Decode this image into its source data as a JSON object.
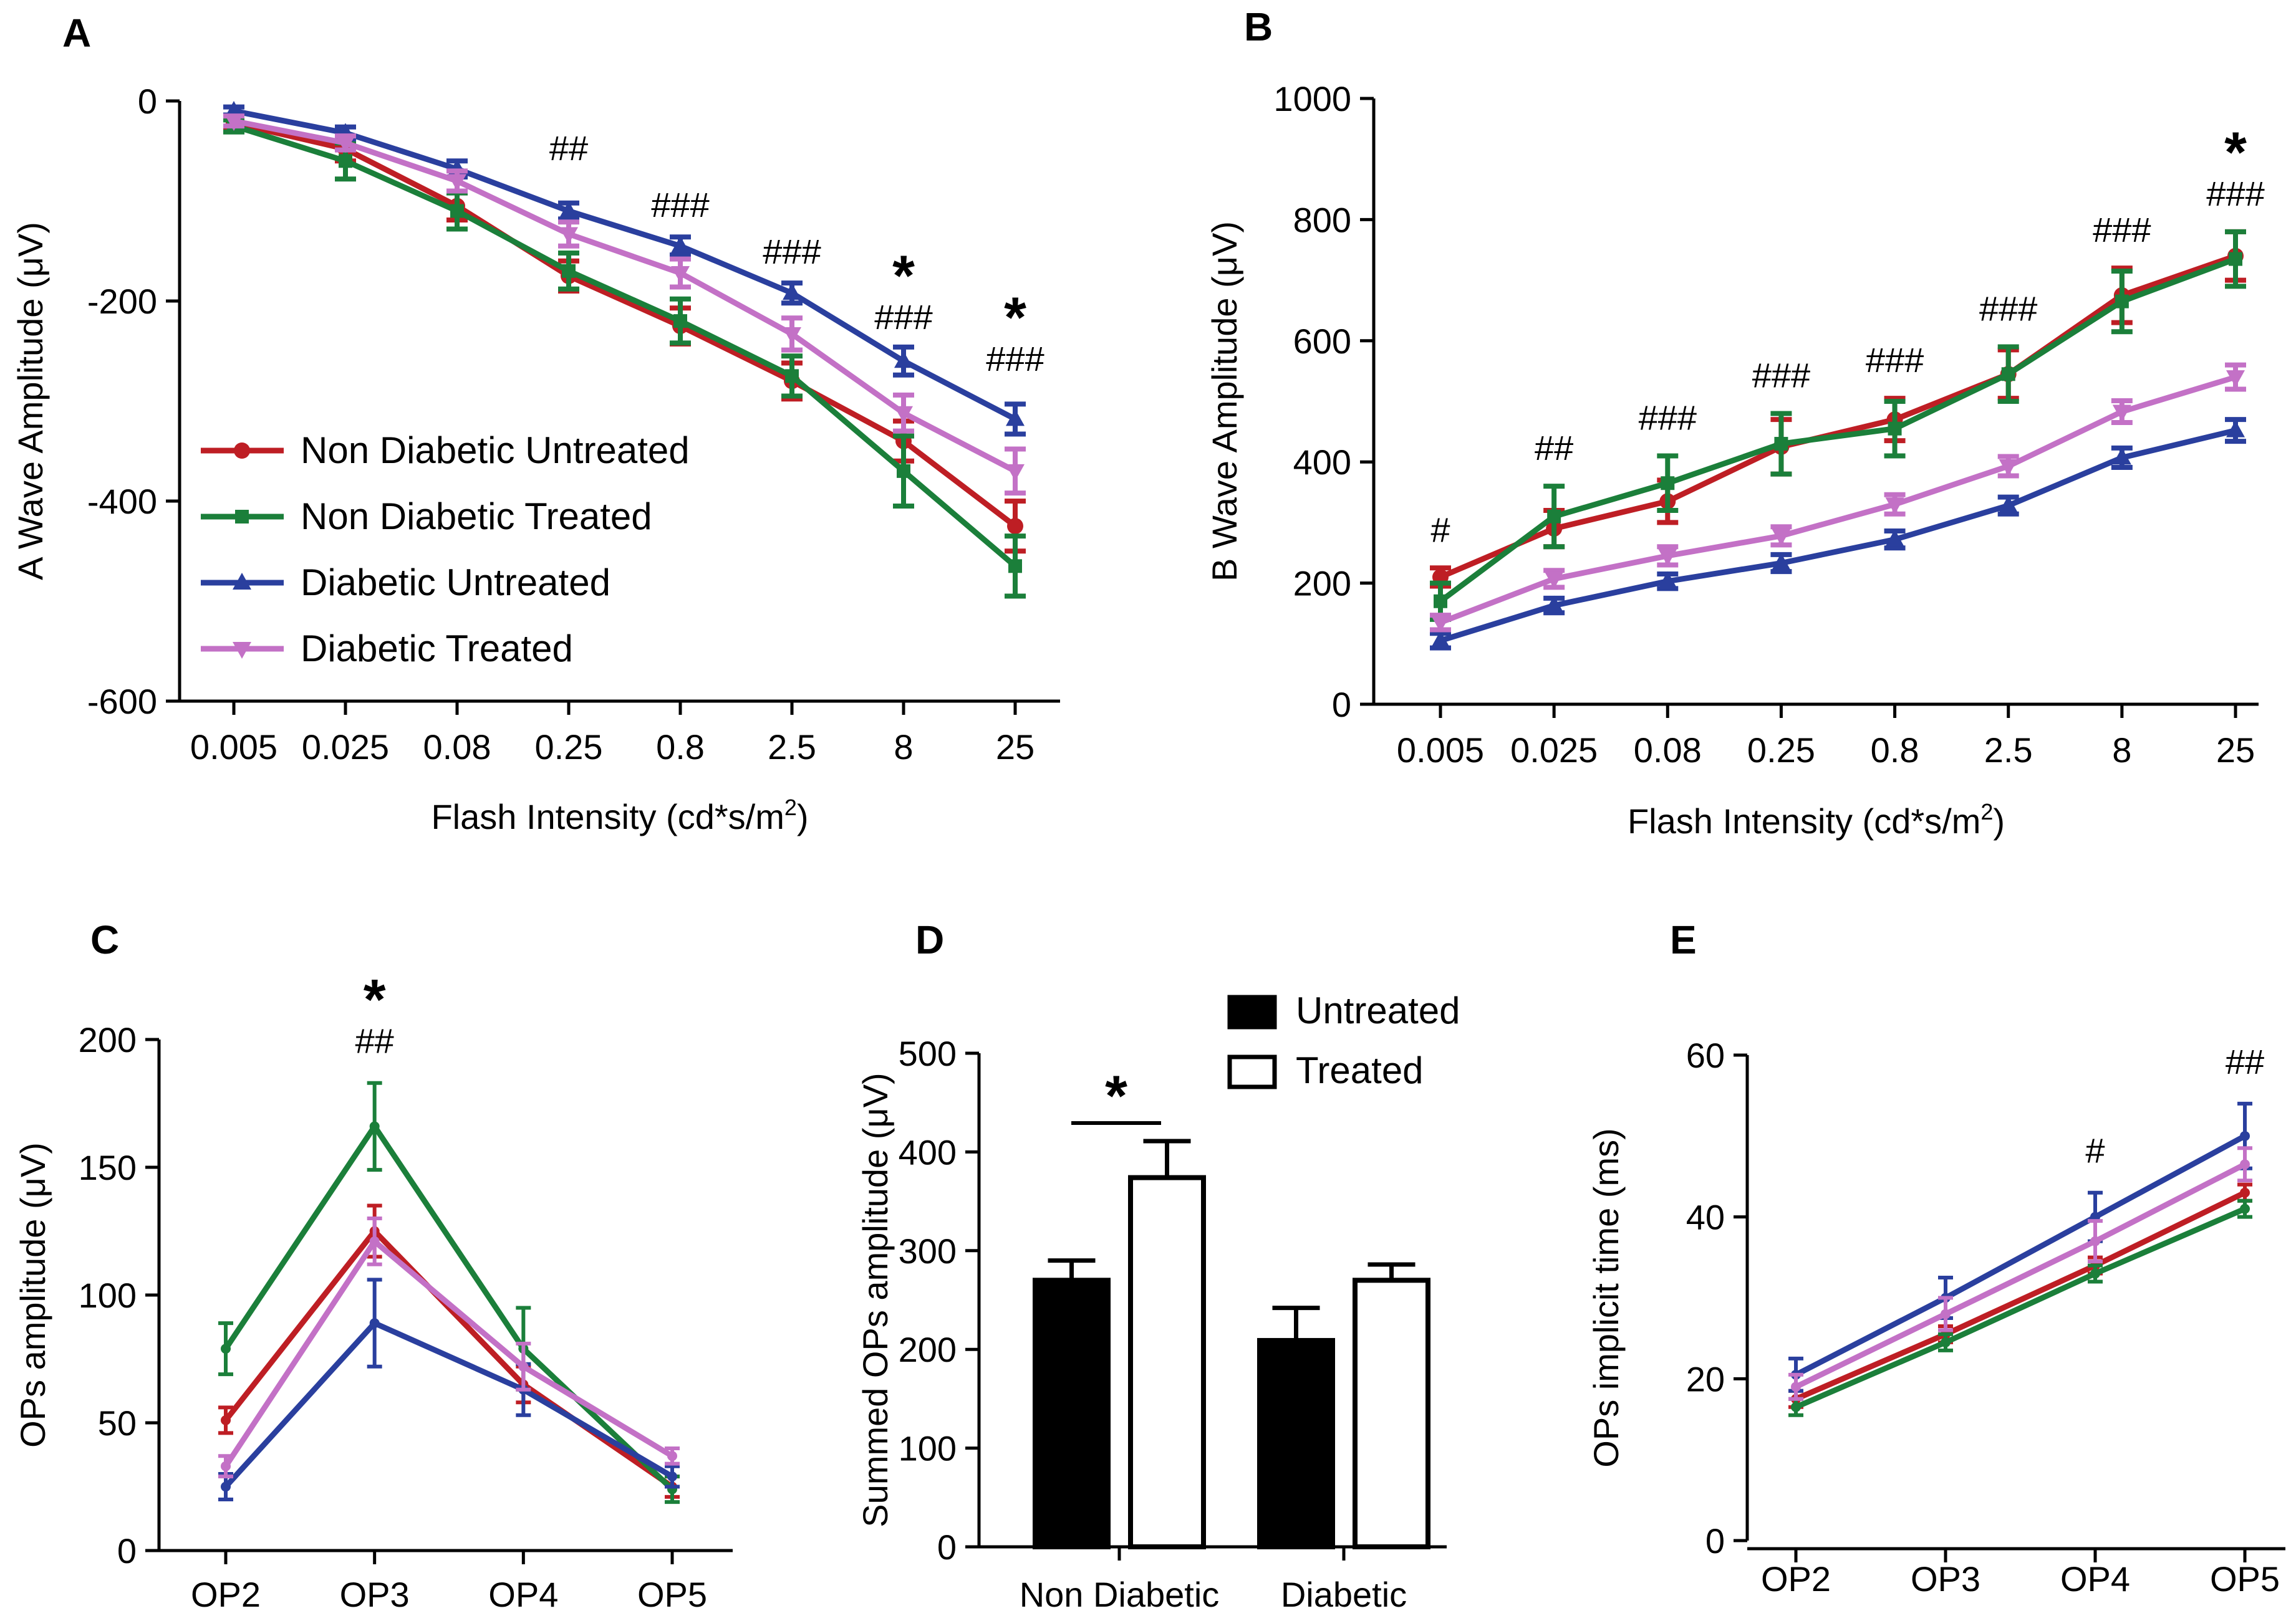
{
  "colors": {
    "non_diabetic_untreated": "#BE1E24",
    "non_diabetic_treated": "#1B7F3A",
    "diabetic_untreated": "#2A3F9E",
    "diabetic_treated": "#C371C6"
  },
  "chart_data": [
    {
      "panel": "A",
      "type": "line",
      "categories": [
        "0.005",
        "0.025",
        "0.08",
        "0.25",
        "0.8",
        "2.5",
        "8",
        "25"
      ],
      "xlabel": "Flash Intensity (cd*s/m",
      "xlabel_sup": "2",
      "xlabel_end": ")",
      "ylabel": "A Wave Amplitude (μV)",
      "ylim": [
        -600,
        0
      ],
      "yticks": [
        "0",
        "-200",
        "-400",
        "-600"
      ],
      "series": [
        {
          "name": "Non Diabetic Untreated",
          "color_key": "non_diabetic_untreated",
          "marker": "circle",
          "values": [
            -22,
            -48,
            -105,
            -175,
            -225,
            -280,
            -340,
            -425
          ],
          "errors": [
            6,
            12,
            14,
            15,
            18,
            18,
            20,
            25
          ]
        },
        {
          "name": "Non Diabetic Treated",
          "color_key": "non_diabetic_treated",
          "marker": "square",
          "values": [
            -25,
            -60,
            -110,
            -170,
            -220,
            -275,
            -370,
            -465
          ],
          "errors": [
            6,
            18,
            18,
            18,
            22,
            20,
            35,
            30
          ]
        },
        {
          "name": "Diabetic Untreated",
          "color_key": "diabetic_untreated",
          "marker": "triangle-up",
          "values": [
            -10,
            -32,
            -68,
            -110,
            -145,
            -192,
            -260,
            -318
          ],
          "errors": [
            4,
            6,
            8,
            8,
            9,
            10,
            14,
            15
          ]
        },
        {
          "name": "Diabetic Treated",
          "color_key": "diabetic_treated",
          "marker": "triangle-down",
          "values": [
            -20,
            -42,
            -80,
            -133,
            -172,
            -233,
            -312,
            -370
          ],
          "errors": [
            5,
            7,
            10,
            12,
            14,
            16,
            18,
            22
          ]
        }
      ],
      "annotations": [
        {
          "category_index": 3,
          "hash": "##",
          "star": ""
        },
        {
          "category_index": 4,
          "hash": "###",
          "star": ""
        },
        {
          "category_index": 5,
          "hash": "###",
          "star": ""
        },
        {
          "category_index": 6,
          "hash": "###",
          "star": "*"
        },
        {
          "category_index": 7,
          "hash": "###",
          "star": "*"
        }
      ],
      "legend_position": "lower-left"
    },
    {
      "panel": "B",
      "type": "line",
      "categories": [
        "0.005",
        "0.025",
        "0.08",
        "0.25",
        "0.8",
        "2.5",
        "8",
        "25"
      ],
      "xlabel": "Flash Intensity (cd*s/m",
      "xlabel_sup": "2",
      "xlabel_end": ")",
      "ylabel": "B Wave Amplitude (μV)",
      "ylim": [
        0,
        1000
      ],
      "yticks": [
        "0",
        "200",
        "400",
        "600",
        "800",
        "1000"
      ],
      "series": [
        {
          "name": "Non Diabetic Untreated",
          "color_key": "non_diabetic_untreated",
          "marker": "circle",
          "values": [
            210,
            290,
            335,
            425,
            470,
            545,
            675,
            740
          ],
          "errors": [
            15,
            30,
            35,
            45,
            35,
            40,
            45,
            40
          ]
        },
        {
          "name": "Non Diabetic Treated",
          "color_key": "non_diabetic_treated",
          "marker": "square",
          "values": [
            170,
            310,
            365,
            430,
            455,
            545,
            665,
            735
          ],
          "errors": [
            30,
            50,
            45,
            50,
            45,
            45,
            50,
            45
          ]
        },
        {
          "name": "Diabetic Untreated",
          "color_key": "diabetic_untreated",
          "marker": "triangle-up",
          "values": [
            105,
            163,
            203,
            233,
            272,
            328,
            407,
            452
          ],
          "errors": [
            12,
            12,
            12,
            14,
            14,
            14,
            16,
            18
          ]
        },
        {
          "name": "Diabetic Treated",
          "color_key": "diabetic_treated",
          "marker": "triangle-down",
          "values": [
            135,
            207,
            245,
            278,
            330,
            393,
            483,
            540
          ],
          "errors": [
            12,
            14,
            15,
            15,
            16,
            16,
            18,
            20
          ]
        }
      ],
      "annotations": [
        {
          "category_index": 0,
          "hash": "#",
          "star": ""
        },
        {
          "category_index": 1,
          "hash": "##",
          "star": ""
        },
        {
          "category_index": 2,
          "hash": "###",
          "star": ""
        },
        {
          "category_index": 3,
          "hash": "###",
          "star": ""
        },
        {
          "category_index": 4,
          "hash": "###",
          "star": ""
        },
        {
          "category_index": 5,
          "hash": "###",
          "star": ""
        },
        {
          "category_index": 6,
          "hash": "###",
          "star": ""
        },
        {
          "category_index": 7,
          "hash": "###",
          "star": "*"
        }
      ]
    },
    {
      "panel": "C",
      "type": "line",
      "categories": [
        "OP2",
        "OP3",
        "OP4",
        "OP5"
      ],
      "xlabel": "",
      "ylabel": "OPs amplitude (μV)",
      "ylim": [
        0,
        200
      ],
      "yticks": [
        "0",
        "50",
        "100",
        "150",
        "200"
      ],
      "series": [
        {
          "name": "Non Diabetic Untreated",
          "color_key": "non_diabetic_untreated",
          "values": [
            51,
            125,
            65,
            25
          ],
          "errors": [
            5,
            10,
            7,
            4
          ]
        },
        {
          "name": "Non Diabetic Treated",
          "color_key": "non_diabetic_treated",
          "values": [
            79,
            166,
            79,
            24
          ],
          "errors": [
            10,
            17,
            16,
            5
          ]
        },
        {
          "name": "Diabetic Untreated",
          "color_key": "diabetic_untreated",
          "values": [
            25,
            89,
            63,
            29
          ],
          "errors": [
            5,
            17,
            10,
            4
          ]
        },
        {
          "name": "Diabetic Treated",
          "color_key": "diabetic_treated",
          "values": [
            33,
            121,
            72,
            37
          ],
          "errors": [
            4,
            9,
            9,
            3
          ]
        }
      ],
      "annotations": [
        {
          "category_index": 1,
          "hash": "##",
          "star": "*"
        }
      ]
    },
    {
      "panel": "D",
      "type": "bar",
      "categories": [
        "Non Diabetic",
        "Diabetic"
      ],
      "xlabel": "",
      "ylabel": "Summed OPs amplitude (μV)",
      "ylim": [
        0,
        500
      ],
      "yticks": [
        "0",
        "100",
        "200",
        "300",
        "400",
        "500"
      ],
      "series": [
        {
          "name": "Untreated",
          "fill": "black",
          "values": [
            270,
            209
          ],
          "errors": [
            20,
            33
          ]
        },
        {
          "name": "Treated",
          "fill": "white",
          "values": [
            374,
            270
          ],
          "errors": [
            37,
            16
          ]
        }
      ],
      "significance": {
        "label": "*",
        "between": [
          "Untreated",
          "Treated"
        ],
        "category_index": 0
      },
      "legend_position": "top-right"
    },
    {
      "panel": "E",
      "type": "line",
      "categories": [
        "OP2",
        "OP3",
        "OP4",
        "OP5"
      ],
      "xlabel": "",
      "ylabel": "OPs implicit time (ms)",
      "ylim": [
        0,
        60
      ],
      "yticks": [
        "0",
        "20",
        "40",
        "60"
      ],
      "series": [
        {
          "name": "Non Diabetic Untreated",
          "color_key": "non_diabetic_untreated",
          "values": [
            17.5,
            25.5,
            34,
            43
          ],
          "errors": [
            1,
            1,
            1,
            1
          ]
        },
        {
          "name": "Non Diabetic Treated",
          "color_key": "non_diabetic_treated",
          "values": [
            16.5,
            24.5,
            33,
            41
          ],
          "errors": [
            1,
            1,
            1,
            1
          ]
        },
        {
          "name": "Diabetic Untreated",
          "color_key": "diabetic_untreated",
          "values": [
            20.5,
            30,
            40,
            50
          ],
          "errors": [
            2,
            2.5,
            3,
            4
          ]
        },
        {
          "name": "Diabetic Treated",
          "color_key": "diabetic_treated",
          "values": [
            19,
            28,
            37,
            46.5
          ],
          "errors": [
            1.5,
            2,
            2.5,
            2
          ]
        }
      ],
      "annotations": [
        {
          "category_index": 2,
          "hash": "#",
          "star": ""
        },
        {
          "category_index": 3,
          "hash": "##",
          "star": ""
        }
      ]
    }
  ]
}
